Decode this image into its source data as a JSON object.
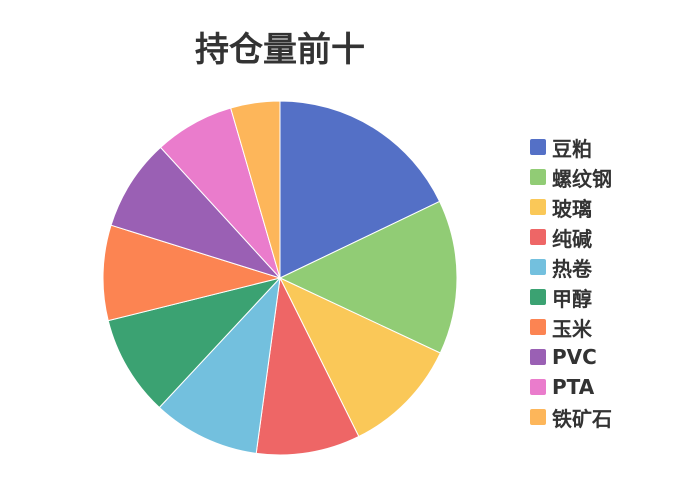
{
  "chart_data": {
    "type": "pie",
    "title": "持仓量前十",
    "categories": [
      "豆粕",
      "螺纹钢",
      "玻璃",
      "纯碱",
      "热卷",
      "甲醇",
      "玉米",
      "PVC",
      "PTA",
      "铁矿石"
    ],
    "values": [
      17.9,
      14.1,
      10.7,
      9.5,
      9.8,
      9.2,
      8.7,
      8.4,
      7.3,
      4.5
    ],
    "colors": [
      "#5470c6",
      "#91cc75",
      "#fac858",
      "#ee6666",
      "#73c0de",
      "#3ba272",
      "#fc8452",
      "#9a60b4",
      "#ea7ccc",
      "#fdb65a"
    ],
    "legend_placement": "right",
    "start_angle": "top, clockwise"
  }
}
